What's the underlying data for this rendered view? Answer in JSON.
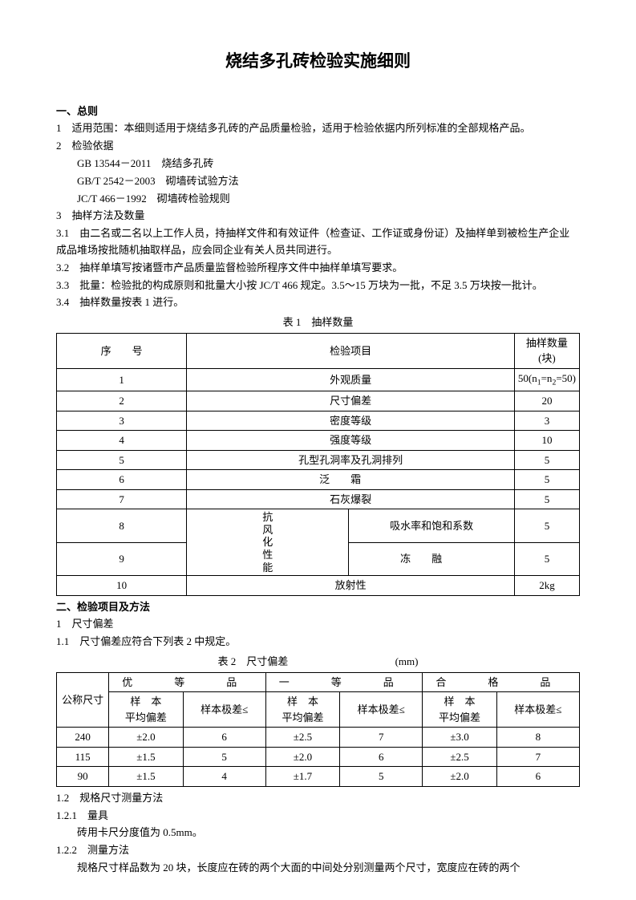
{
  "title": "烧结多孔砖检验实施细则",
  "s1": {
    "head": "一、总则",
    "i1": "1　适用范围：本细则适用于烧结多孔砖的产品质量检验，适用于检验依据内所列标准的全部规格产品。",
    "i2": "2　检验依据",
    "i2a": "GB 13544－2011　烧结多孔砖",
    "i2b": "GB/T 2542－2003　砌墙砖试验方法",
    "i2c": "JC/T 466－1992　砌墙砖检验规则",
    "i3": "3　抽样方法及数量",
    "i31": "3.1　由二名或二名以上工作人员，持抽样文件和有效证件（检查证、工作证或身份证）及抽样单到被检生产企业成品堆场按批随机抽取样品，应会同企业有关人员共同进行。",
    "i32": "3.2　抽样单填写按诸暨市产品质量监督检验所程序文件中抽样单填写要求。",
    "i33": "3.3　批量：检验批的构成原则和批量大小按 JC/T 466 规定。3.5～15 万块为一批，不足 3.5 万块按一批计。",
    "i34": "3.4　抽样数量按表 1 进行。"
  },
  "t1": {
    "caption": "表 1　抽样数量",
    "h1": "序　　号",
    "h2": "检验项目",
    "h3": "抽样数量(块)",
    "vert_label": "抗风化性能",
    "rows": [
      {
        "n": "1",
        "p": "外观质量",
        "q_html": "50(n<span class=\"sub\">1</span>=n<span class=\"sub\">2</span>=50)"
      },
      {
        "n": "2",
        "p": "尺寸偏差",
        "q": "20"
      },
      {
        "n": "3",
        "p": "密度等级",
        "q": "3"
      },
      {
        "n": "4",
        "p": "强度等级",
        "q": "10"
      },
      {
        "n": "5",
        "p": "孔型孔洞率及孔洞排列",
        "q": "5"
      },
      {
        "n": "6",
        "p": "泛　　霜",
        "q": "5"
      },
      {
        "n": "7",
        "p": "石灰爆裂",
        "q": "5"
      },
      {
        "n": "8",
        "p": "吸水率和饱和系数",
        "q": "5",
        "grp": true,
        "span": 2
      },
      {
        "n": "9",
        "p": "冻　　融",
        "q": "5",
        "grp": true
      },
      {
        "n": "10",
        "p": "放射性",
        "q": "2kg"
      }
    ]
  },
  "s2": {
    "head": "二、检验项目及方法",
    "i1": "1　尺寸偏差",
    "i11": "1.1　尺寸偏差应符合下列表 2 中规定。"
  },
  "t2": {
    "caption_l": "表 2　尺寸偏差",
    "caption_r": "(mm)",
    "col0": "公称尺寸",
    "g1": "优　等　品",
    "g2": "一　等　品",
    "g3": "合　格　品",
    "sub1": "样　本\n平均偏差",
    "sub2": "样本极差≤",
    "rows": [
      {
        "d": "240",
        "a1": "±2.0",
        "b1": "6",
        "a2": "±2.5",
        "b2": "7",
        "a3": "±3.0",
        "b3": "8"
      },
      {
        "d": "115",
        "a1": "±1.5",
        "b1": "5",
        "a2": "±2.0",
        "b2": "6",
        "a3": "±2.5",
        "b3": "7"
      },
      {
        "d": "90",
        "a1": "±1.5",
        "b1": "4",
        "a2": "±1.7",
        "b2": "5",
        "a3": "±2.0",
        "b3": "6"
      }
    ]
  },
  "s3": {
    "i12": "1.2　规格尺寸测量方法",
    "i121": "1.2.1　量具",
    "i121a": "砖用卡尺分度值为 0.5mm。",
    "i122": "1.2.2　测量方法",
    "i122a": "规格尺寸样品数为 20 块，长度应在砖的两个大面的中间处分别测量两个尺寸，宽度应在砖的两个"
  }
}
